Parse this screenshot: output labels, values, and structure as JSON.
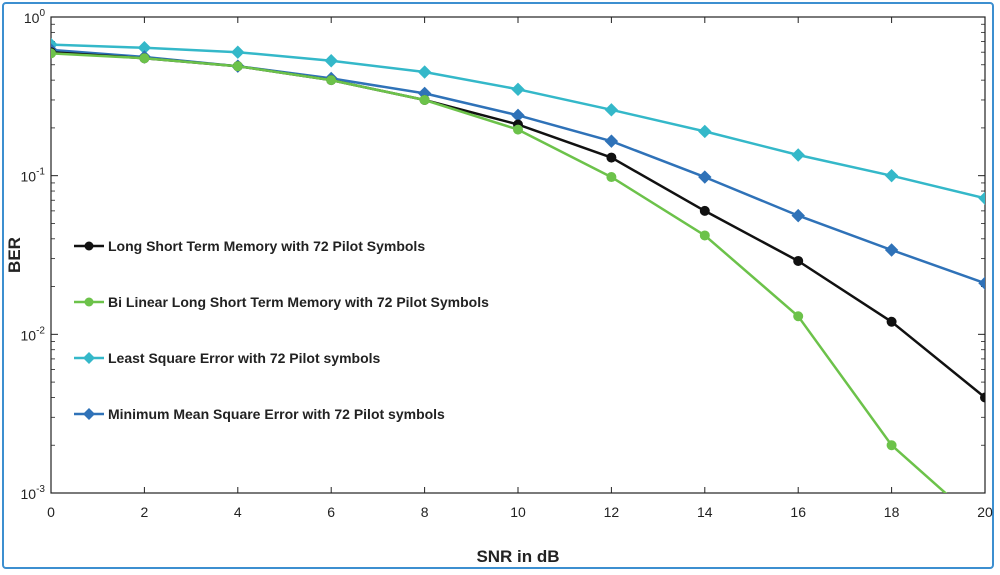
{
  "chart_data": {
    "type": "line",
    "title": "",
    "xlabel": "SNR in dB",
    "ylabel": "BER",
    "xlim": [
      0,
      20
    ],
    "ylim": [
      0.001,
      1
    ],
    "yscale": "log",
    "grid": false,
    "legend_position": "center-left",
    "x_ticks": [
      "0",
      "2",
      "4",
      "6",
      "8",
      "10",
      "12",
      "14",
      "16",
      "18",
      "20"
    ],
    "y_ticks": [
      {
        "base": "10",
        "exp": "0"
      },
      {
        "base": "10",
        "exp": "-1"
      },
      {
        "base": "10",
        "exp": "-2"
      },
      {
        "base": "10",
        "exp": "-3"
      }
    ],
    "x": [
      0,
      2,
      4,
      6,
      8,
      10,
      12,
      14,
      16,
      18,
      20
    ],
    "series": [
      {
        "name": "Least Square Error with 72 Pilot symbols",
        "color": "#34b8c9",
        "marker": "diamond",
        "values": [
          0.67,
          0.64,
          0.6,
          0.53,
          0.45,
          0.35,
          0.26,
          0.19,
          0.135,
          0.1,
          0.072
        ]
      },
      {
        "name": "Minimum Mean Square Error with 72 Pilot symbols",
        "color": "#2f72b8",
        "marker": "diamond",
        "values": [
          0.62,
          0.56,
          0.49,
          0.41,
          0.33,
          0.24,
          0.165,
          0.098,
          0.056,
          0.034,
          0.021
        ]
      },
      {
        "name": "Long Short Term Memory with 72 Pilot Symbols",
        "color": "#111111",
        "marker": "circle",
        "values": [
          0.6,
          0.55,
          0.49,
          0.4,
          0.3,
          0.21,
          0.13,
          0.06,
          0.029,
          0.012,
          0.004
        ]
      },
      {
        "name": "Bi Linear Long Short Term Memory with 72 Pilot Symbols",
        "color": "#6cc24a",
        "marker": "circle",
        "values": [
          0.59,
          0.55,
          0.49,
          0.4,
          0.3,
          0.195,
          0.098,
          0.042,
          0.013,
          0.002,
          0.0006
        ]
      }
    ],
    "legend_order": [
      2,
      3,
      0,
      1
    ]
  }
}
